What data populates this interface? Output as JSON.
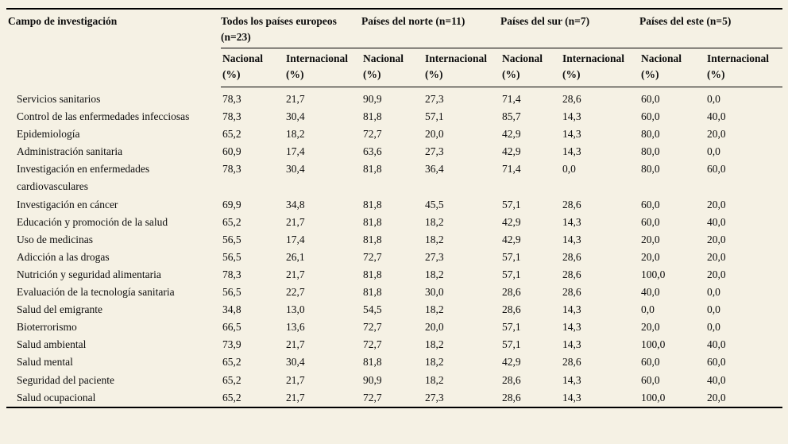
{
  "colors": {
    "background": "#f5f1e4",
    "text": "#0d0d0d",
    "rule": "#000000"
  },
  "table": {
    "corner_header": "Campo de investigación",
    "groups": [
      {
        "label": "Todos los países europeos (n=23)"
      },
      {
        "label": "Países del norte (n=11)"
      },
      {
        "label": "Países del sur (n=7)"
      },
      {
        "label": "Países del este (n=5)"
      }
    ],
    "sub": {
      "nacional": "Nacional",
      "internacional": "Internacional",
      "unit": "(%)"
    },
    "rows": [
      {
        "label": "Servicios sanitarios",
        "values": [
          "78,3",
          "21,7",
          "90,9",
          "27,3",
          "71,4",
          "28,6",
          "60,0",
          "0,0"
        ]
      },
      {
        "label": "Control de las enfermedades infecciosas",
        "values": [
          "78,3",
          "30,4",
          "81,8",
          "57,1",
          "85,7",
          "14,3",
          "60,0",
          "40,0"
        ]
      },
      {
        "label": "Epidemiología",
        "values": [
          "65,2",
          "18,2",
          "72,7",
          "20,0",
          "42,9",
          "14,3",
          "80,0",
          "20,0"
        ]
      },
      {
        "label": "Administración sanitaria",
        "values": [
          "60,9",
          "17,4",
          "63,6",
          "27,3",
          "42,9",
          "14,3",
          "80,0",
          "0,0"
        ]
      },
      {
        "label": "Investigación en enfermedades cardiovasculares",
        "values": [
          "78,3",
          "30,4",
          "81,8",
          "36,4",
          "71,4",
          "0,0",
          "80,0",
          "60,0"
        ]
      },
      {
        "label": "Investigación en cáncer",
        "values": [
          "69,9",
          "34,8",
          "81,8",
          "45,5",
          "57,1",
          "28,6",
          "60,0",
          "20,0"
        ]
      },
      {
        "label": "Educación y promoción de la salud",
        "values": [
          "65,2",
          "21,7",
          "81,8",
          "18,2",
          "42,9",
          "14,3",
          "60,0",
          "40,0"
        ]
      },
      {
        "label": "Uso de medicinas",
        "values": [
          "56,5",
          "17,4",
          "81,8",
          "18,2",
          "42,9",
          "14,3",
          "20,0",
          "20,0"
        ]
      },
      {
        "label": "Adicción a las drogas",
        "values": [
          "56,5",
          "26,1",
          "72,7",
          "27,3",
          "57,1",
          "28,6",
          "20,0",
          "20,0"
        ]
      },
      {
        "label": "Nutrición y seguridad alimentaria",
        "values": [
          "78,3",
          "21,7",
          "81,8",
          "18,2",
          "57,1",
          "28,6",
          "100,0",
          "20,0"
        ]
      },
      {
        "label": "Evaluación de la tecnología sanitaria",
        "values": [
          "56,5",
          "22,7",
          "81,8",
          "30,0",
          "28,6",
          "28,6",
          "40,0",
          "0,0"
        ]
      },
      {
        "label": "Salud del emigrante",
        "values": [
          "34,8",
          "13,0",
          "54,5",
          "18,2",
          "28,6",
          "14,3",
          "0,0",
          "0,0"
        ]
      },
      {
        "label": "Bioterrorismo",
        "values": [
          "66,5",
          "13,6",
          "72,7",
          "20,0",
          "57,1",
          "14,3",
          "20,0",
          "0,0"
        ]
      },
      {
        "label": "Salud ambiental",
        "values": [
          "73,9",
          "21,7",
          "72,7",
          "18,2",
          "57,1",
          "14,3",
          "100,0",
          "40,0"
        ]
      },
      {
        "label": "Salud mental",
        "values": [
          "65,2",
          "30,4",
          "81,8",
          "18,2",
          "42,9",
          "28,6",
          "60,0",
          "60,0"
        ]
      },
      {
        "label": "Seguridad del paciente",
        "values": [
          "65,2",
          "21,7",
          "90,9",
          "18,2",
          "28,6",
          "14,3",
          "60,0",
          "40,0"
        ]
      },
      {
        "label": "Salud ocupacional",
        "values": [
          "65,2",
          "21,7",
          "72,7",
          "27,3",
          "28,6",
          "14,3",
          "100,0",
          "20,0"
        ]
      }
    ]
  }
}
